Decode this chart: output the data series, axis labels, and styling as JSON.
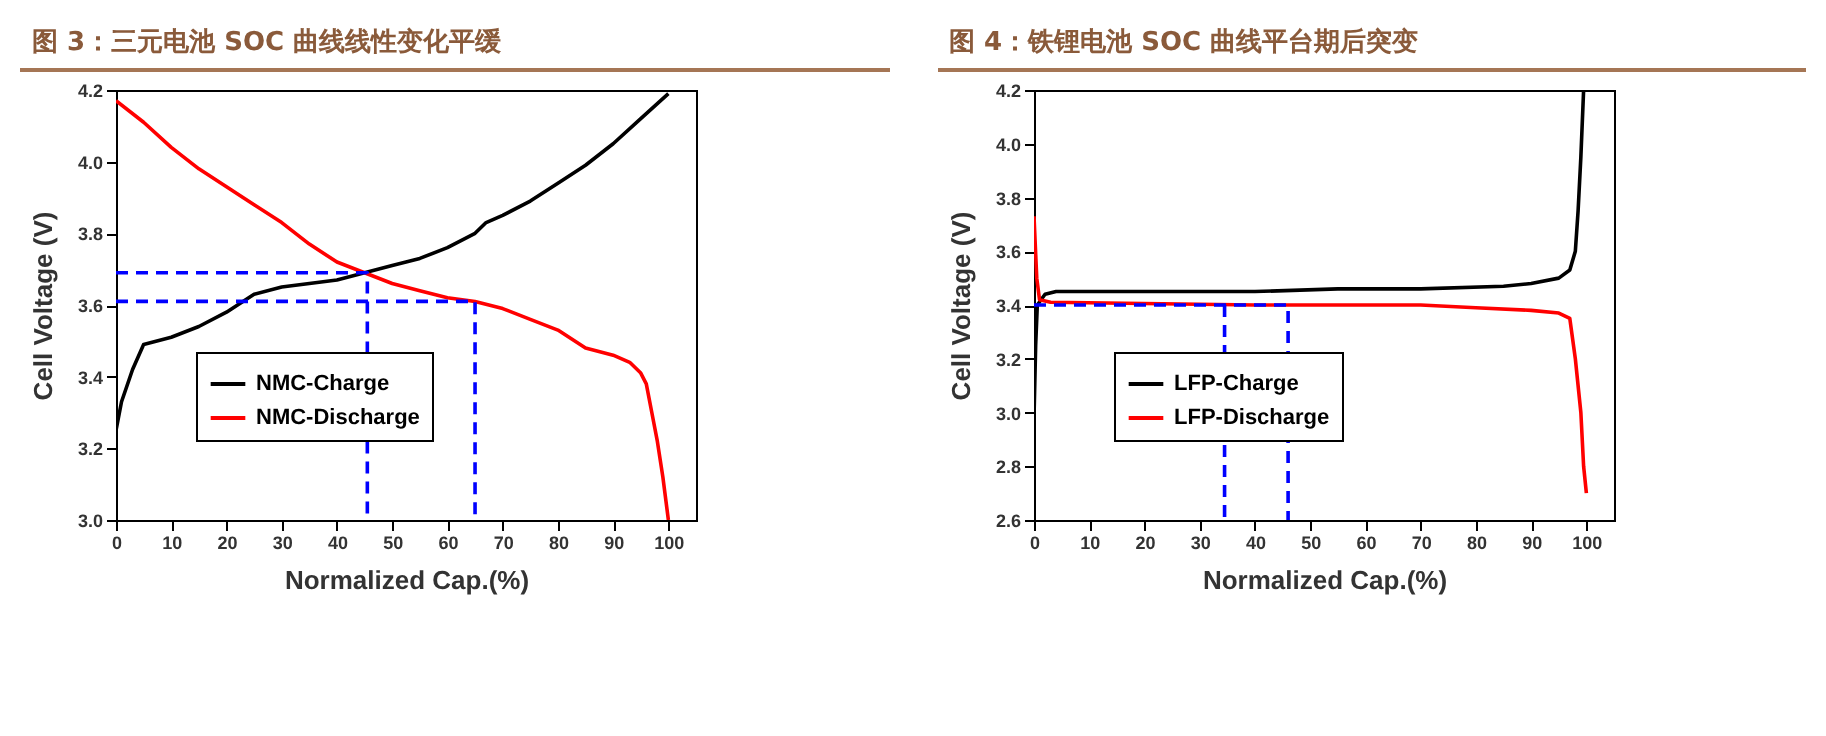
{
  "chart_data": [
    {
      "type": "line",
      "title": "图 3：三元电池 SOC 曲线线性变化平缓",
      "xlabel": "Normalized Cap.(%)",
      "ylabel": "Cell Voltage (V)",
      "xlim": [
        0,
        105
      ],
      "xticks": [
        0,
        10,
        20,
        30,
        40,
        50,
        60,
        70,
        80,
        90,
        100
      ],
      "ylim": [
        3.0,
        4.2
      ],
      "yticks": [
        {
          "value": 3.0,
          "label": "3.0"
        },
        {
          "value": 3.2,
          "label": "3.2"
        },
        {
          "value": 3.4,
          "label": "3.4"
        },
        {
          "value": 3.6,
          "label": "3.6"
        },
        {
          "value": 3.8,
          "label": "3.8"
        },
        {
          "value": 4.0,
          "label": "4.0"
        },
        {
          "value": 4.2,
          "label": "4.2"
        }
      ],
      "grid": false,
      "legend": "bottom left",
      "series": [
        {
          "name": "NMC-Charge",
          "color": "#000000",
          "x": [
            0,
            1,
            3,
            5,
            10,
            15,
            20,
            25,
            30,
            40,
            45,
            50,
            55,
            60,
            65,
            67,
            70,
            75,
            80,
            85,
            90,
            95,
            100
          ],
          "values": [
            3.25,
            3.33,
            3.42,
            3.49,
            3.51,
            3.54,
            3.58,
            3.63,
            3.65,
            3.67,
            3.69,
            3.71,
            3.73,
            3.76,
            3.8,
            3.83,
            3.85,
            3.89,
            3.94,
            3.99,
            4.05,
            4.12,
            4.19
          ]
        },
        {
          "name": "NMC-Discharge",
          "color": "#ff0000",
          "x": [
            0,
            5,
            10,
            15,
            20,
            25,
            30,
            35,
            40,
            45,
            50,
            55,
            60,
            65,
            70,
            75,
            80,
            85,
            90,
            93,
            95,
            96,
            97,
            98,
            99,
            100
          ],
          "values": [
            4.17,
            4.11,
            4.04,
            3.98,
            3.93,
            3.88,
            3.83,
            3.77,
            3.72,
            3.69,
            3.66,
            3.64,
            3.62,
            3.61,
            3.59,
            3.56,
            3.53,
            3.48,
            3.46,
            3.44,
            3.41,
            3.38,
            3.3,
            3.22,
            3.12,
            3.0
          ]
        },
        {
          "color": "#0000ff",
          "line_style": "dashed",
          "x": [
            0,
            45.5,
            45.5
          ],
          "values": [
            3.69,
            3.69,
            3.0
          ]
        },
        {
          "color": "#0000ff",
          "line_style": "dashed",
          "x": [
            0,
            65,
            65
          ],
          "values": [
            3.61,
            3.61,
            3.0
          ]
        }
      ]
    },
    {
      "type": "line",
      "title": "图 4：铁锂电池 SOC 曲线平台期后突变",
      "xlabel": "Normalized Cap.(%)",
      "ylabel": "Cell Voltage (V)",
      "xlim": [
        0,
        105
      ],
      "xticks": [
        0,
        10,
        20,
        30,
        40,
        50,
        60,
        70,
        80,
        90,
        100
      ],
      "ylim": [
        2.6,
        4.2
      ],
      "yticks": [
        {
          "value": 2.6,
          "label": "2.6"
        },
        {
          "value": 2.8,
          "label": "2.8"
        },
        {
          "value": 3.0,
          "label": "3.0"
        },
        {
          "value": 3.2,
          "label": "3.2"
        },
        {
          "value": 3.4,
          "label": "3.4"
        },
        {
          "value": 3.6,
          "label": "3.6"
        },
        {
          "value": 3.8,
          "label": "3.8"
        },
        {
          "value": 4.0,
          "label": "4.0"
        },
        {
          "value": 4.2,
          "label": "4.2"
        }
      ],
      "grid": false,
      "legend": "bottom left",
      "series": [
        {
          "name": "LFP-Charge",
          "color": "#000000",
          "x": [
            0,
            0.3,
            0.6,
            2,
            4,
            20,
            40,
            55,
            70,
            85,
            90,
            95,
            97,
            98,
            98.5,
            99,
            99.5
          ],
          "values": [
            2.98,
            3.25,
            3.4,
            3.44,
            3.45,
            3.45,
            3.45,
            3.46,
            3.46,
            3.47,
            3.48,
            3.5,
            3.53,
            3.6,
            3.75,
            3.95,
            4.2
          ]
        },
        {
          "name": "LFP-Discharge",
          "color": "#ff0000",
          "x": [
            0,
            0.5,
            1,
            3,
            40,
            70,
            80,
            90,
            95,
            97,
            98,
            99,
            99.5,
            100
          ],
          "values": [
            3.73,
            3.5,
            3.42,
            3.41,
            3.4,
            3.4,
            3.39,
            3.38,
            3.37,
            3.35,
            3.2,
            3.0,
            2.8,
            2.7
          ]
        },
        {
          "color": "#0000ff",
          "line_style": "dashed",
          "x": [
            0,
            46,
            46
          ],
          "values": [
            3.4,
            3.4,
            2.6
          ]
        },
        {
          "color": "#0000ff",
          "line_style": "dashed",
          "x": [
            34.5,
            34.5
          ],
          "values": [
            3.4,
            2.6
          ]
        }
      ]
    }
  ]
}
